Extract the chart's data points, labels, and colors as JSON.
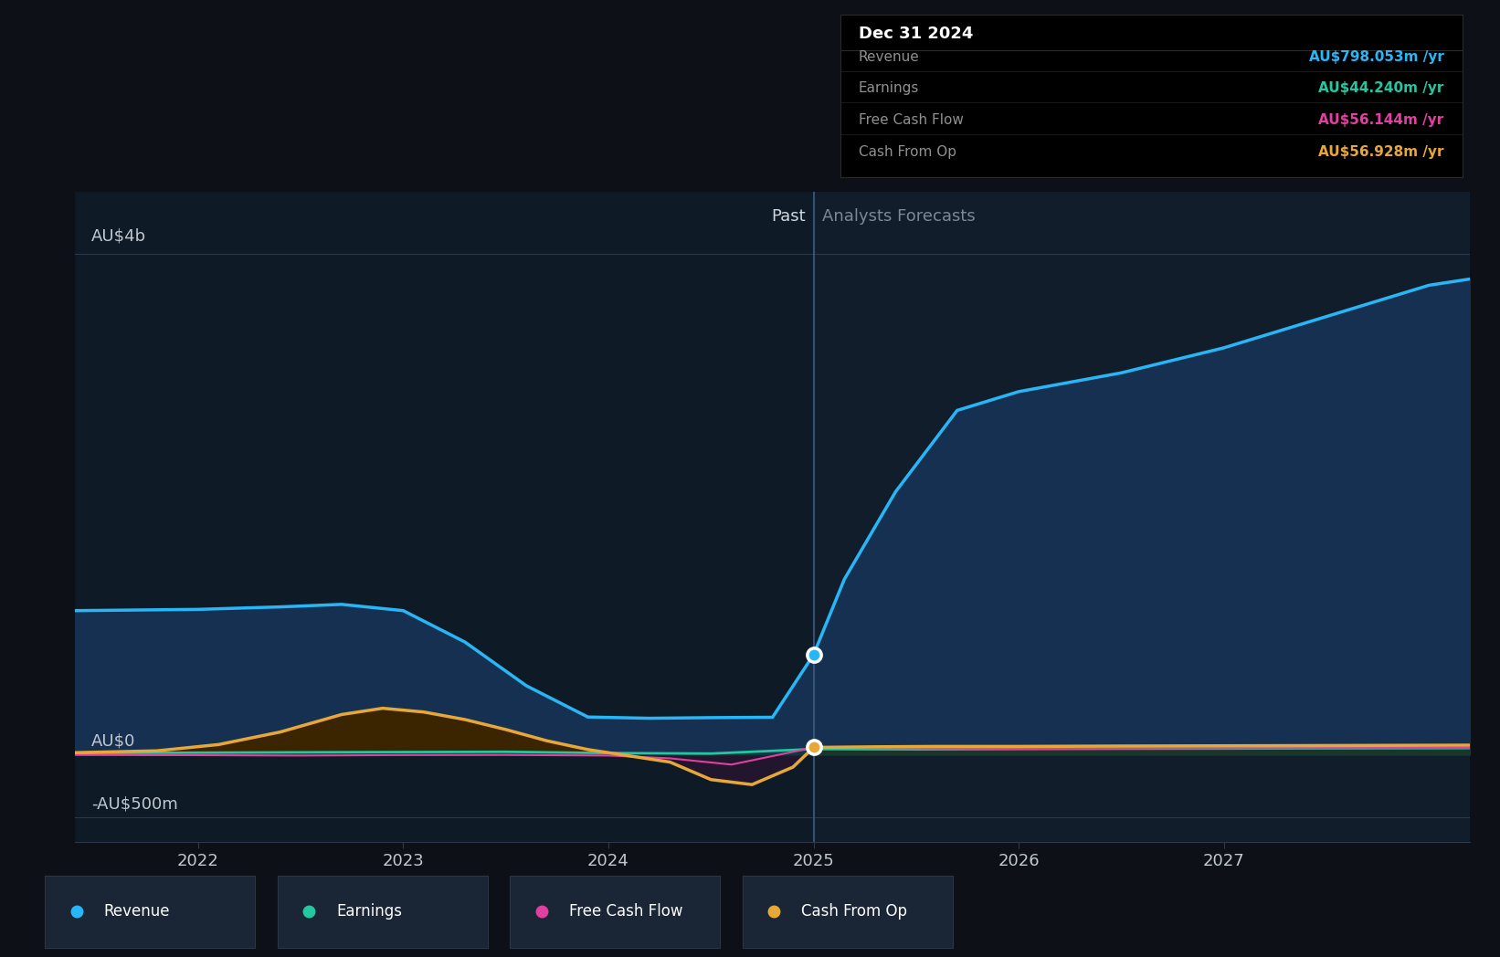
{
  "bg_color": "#0d1117",
  "plot_bg_color": "#111d2b",
  "past_x": 2025.0,
  "x_min": 2021.4,
  "x_max": 2028.2,
  "ylim_min": -700,
  "ylim_max": 4500,
  "x_labels": [
    "2022",
    "2023",
    "2024",
    "2025",
    "2026",
    "2027"
  ],
  "x_ticks": [
    2022,
    2023,
    2024,
    2025,
    2026,
    2027
  ],
  "y_label_4b": "AU$4b",
  "y_label_0": "AU$0",
  "y_label_neg": "-AU$500m",
  "y_val_4b": 4000,
  "y_val_0": 0,
  "y_val_neg": -500,
  "past_label": "Past",
  "forecast_label": "Analysts Forecasts",
  "revenue_color": "#29b6f6",
  "earnings_color": "#26c6a0",
  "fcf_color": "#e040a0",
  "cashop_color": "#e8a838",
  "revenue_fill": "#153050",
  "cashop_fill_pos": "#3a2500",
  "cashop_fill_neg": "#2a1530",
  "divider_color": "#3a5a7a",
  "grid_color": "#2a3a4a",
  "tooltip": {
    "date": "Dec 31 2024",
    "rows": [
      {
        "label": "Revenue",
        "value": "AU$798.053m /yr",
        "color": "#29b6f6"
      },
      {
        "label": "Earnings",
        "value": "AU$44.240m /yr",
        "color": "#26c6a0"
      },
      {
        "label": "Free Cash Flow",
        "value": "AU$56.144m /yr",
        "color": "#e040a0"
      },
      {
        "label": "Cash From Op",
        "value": "AU$56.928m /yr",
        "color": "#e8a838"
      }
    ],
    "bg": "#000000",
    "border": "#2a2a2a",
    "label_color": "#909090",
    "date_color": "#ffffff"
  },
  "legend_items": [
    {
      "label": "Revenue",
      "color": "#29b6f6"
    },
    {
      "label": "Earnings",
      "color": "#26c6a0"
    },
    {
      "label": "Free Cash Flow",
      "color": "#e040a0"
    },
    {
      "label": "Cash From Op",
      "color": "#e8a838"
    }
  ],
  "legend_box_color": "#1a2535",
  "legend_box_edge": "#2a3545",
  "rev_x": [
    2021.4,
    2022.0,
    2022.4,
    2022.7,
    2023.0,
    2023.3,
    2023.6,
    2023.9,
    2024.2,
    2024.5,
    2024.8,
    2025.0,
    2025.15,
    2025.4,
    2025.7,
    2026.0,
    2026.5,
    2027.0,
    2027.5,
    2028.0,
    2028.2
  ],
  "rev_y": [
    1150,
    1160,
    1180,
    1200,
    1150,
    900,
    550,
    300,
    290,
    295,
    298,
    798,
    1400,
    2100,
    2750,
    2900,
    3050,
    3250,
    3500,
    3750,
    3800
  ],
  "earn_x": [
    2021.4,
    2022.0,
    2022.5,
    2023.0,
    2023.5,
    2024.0,
    2024.5,
    2025.0,
    2025.5,
    2026.0,
    2026.5,
    2027.0,
    2027.5,
    2028.2
  ],
  "earn_y": [
    12,
    15,
    18,
    20,
    22,
    12,
    8,
    44,
    42,
    45,
    47,
    48,
    50,
    52
  ],
  "fcf_x": [
    2021.4,
    2022.0,
    2022.5,
    2023.0,
    2023.5,
    2024.0,
    2024.3,
    2024.6,
    2025.0,
    2025.5,
    2026.0,
    2026.5,
    2027.0,
    2027.5,
    2028.2
  ],
  "fcf_y": [
    -3,
    -5,
    -8,
    -4,
    -3,
    -8,
    -30,
    -80,
    56,
    50,
    46,
    48,
    50,
    52,
    54
  ],
  "cashop_x": [
    2021.4,
    2021.8,
    2022.1,
    2022.4,
    2022.7,
    2022.9,
    2023.1,
    2023.3,
    2023.5,
    2023.7,
    2023.9,
    2024.1,
    2024.3,
    2024.5,
    2024.7,
    2024.9,
    2025.0,
    2025.3,
    2025.6,
    2026.0,
    2026.5,
    2027.0,
    2027.5,
    2028.2
  ],
  "cashop_y": [
    15,
    30,
    80,
    180,
    320,
    370,
    340,
    280,
    200,
    110,
    40,
    -10,
    -60,
    -200,
    -240,
    -100,
    57,
    62,
    65,
    65,
    68,
    70,
    72,
    75
  ]
}
